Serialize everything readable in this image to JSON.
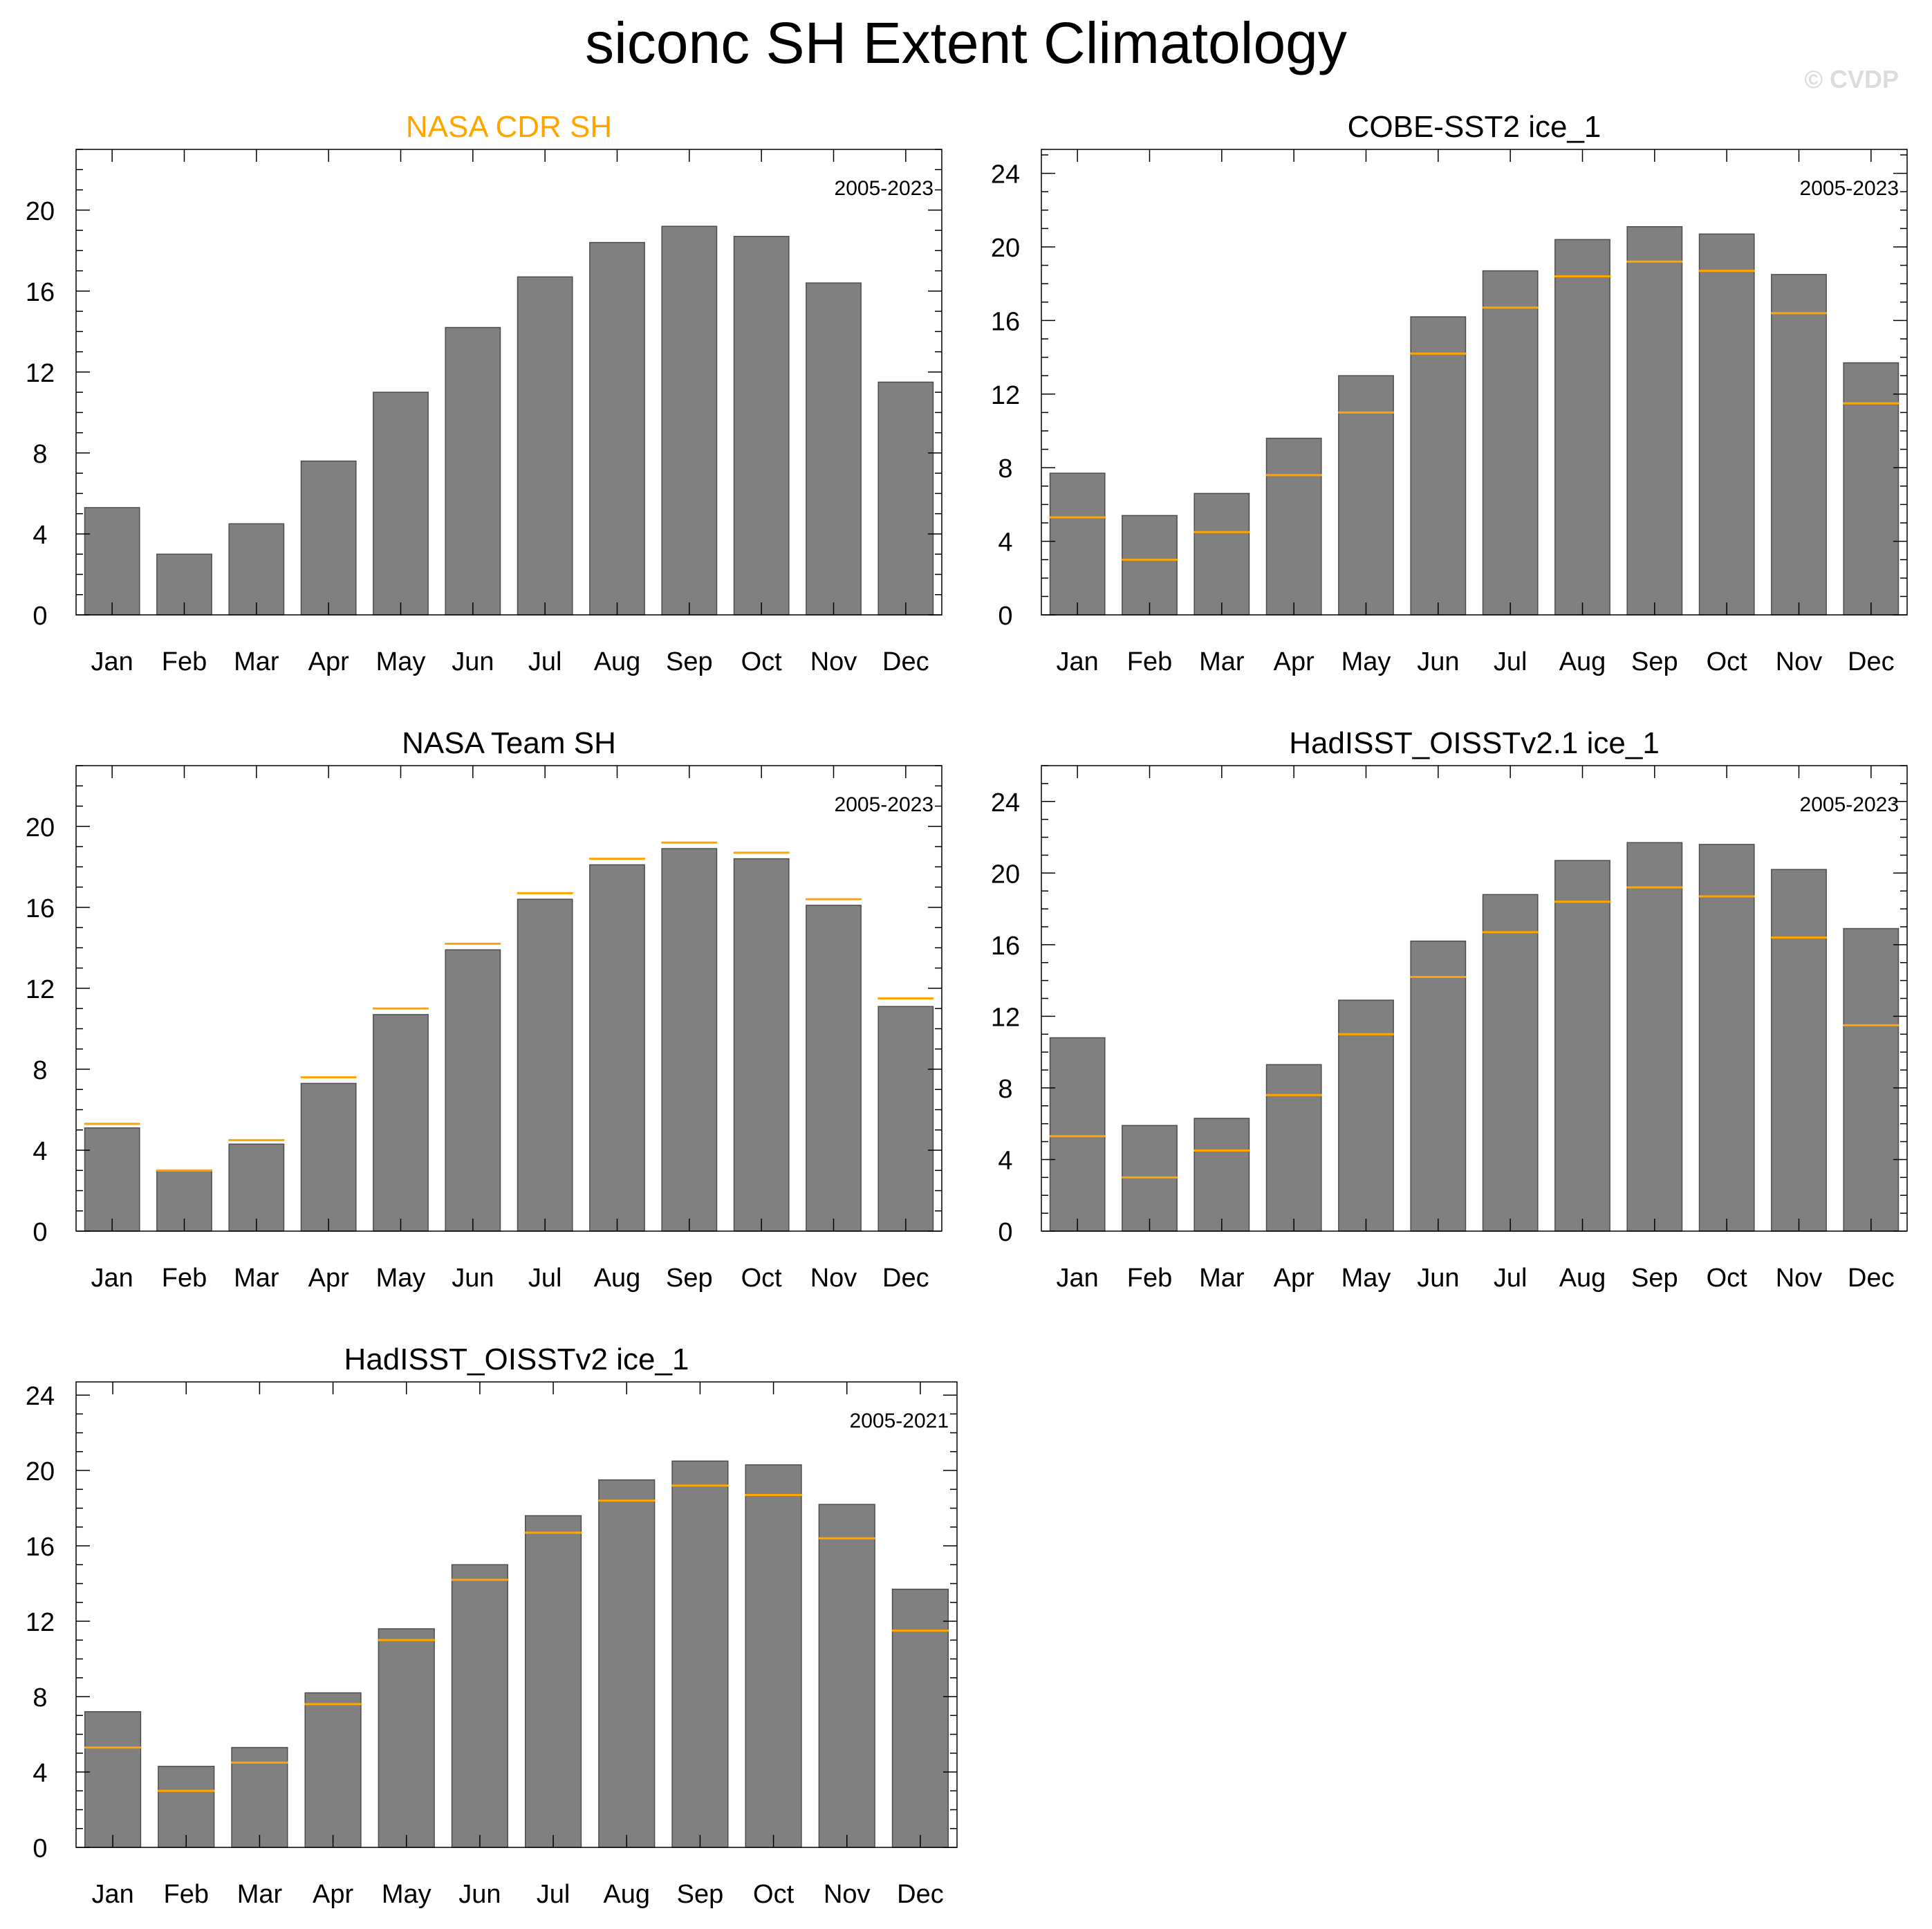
{
  "page": {
    "title": "siconc SH Extent Climatology",
    "watermark": "© CVDP"
  },
  "colors": {
    "bar": "#808080",
    "bar_edge": "#4d4d4d",
    "reference": "#ffa500",
    "highlight_title": "#ffa500",
    "axis": "#000000"
  },
  "chart_data": [
    {
      "type": "bar",
      "title": "NASA CDR SH",
      "title_highlight": true,
      "period": "2005-2023",
      "categories": [
        "Jan",
        "Feb",
        "Mar",
        "Apr",
        "May",
        "Jun",
        "Jul",
        "Aug",
        "Sep",
        "Oct",
        "Nov",
        "Dec"
      ],
      "values": [
        5.3,
        3.0,
        4.5,
        7.6,
        11.0,
        14.2,
        16.7,
        18.4,
        19.2,
        18.7,
        16.4,
        11.5
      ],
      "reference_values": null,
      "yticks": [
        0,
        4,
        8,
        12,
        16,
        20
      ],
      "ylim": [
        0,
        23
      ]
    },
    {
      "type": "bar",
      "title": "COBE-SST2 ice_1",
      "title_highlight": false,
      "period": "2005-2023",
      "categories": [
        "Jan",
        "Feb",
        "Mar",
        "Apr",
        "May",
        "Jun",
        "Jul",
        "Aug",
        "Sep",
        "Oct",
        "Nov",
        "Dec"
      ],
      "values": [
        7.7,
        5.4,
        6.6,
        9.6,
        13.0,
        16.2,
        18.7,
        20.4,
        21.1,
        20.7,
        18.5,
        13.7
      ],
      "reference_values": [
        5.3,
        3.0,
        4.5,
        7.6,
        11.0,
        14.2,
        16.7,
        18.4,
        19.2,
        18.7,
        16.4,
        11.5
      ],
      "yticks": [
        0,
        4,
        8,
        12,
        16,
        20,
        24
      ],
      "ylim": [
        0,
        25.3
      ]
    },
    {
      "type": "bar",
      "title": "NASA Team SH",
      "title_highlight": false,
      "period": "2005-2023",
      "categories": [
        "Jan",
        "Feb",
        "Mar",
        "Apr",
        "May",
        "Jun",
        "Jul",
        "Aug",
        "Sep",
        "Oct",
        "Nov",
        "Dec"
      ],
      "values": [
        5.1,
        3.0,
        4.3,
        7.3,
        10.7,
        13.9,
        16.4,
        18.1,
        18.9,
        18.4,
        16.1,
        11.1
      ],
      "reference_values": [
        5.3,
        3.0,
        4.5,
        7.6,
        11.0,
        14.2,
        16.7,
        18.4,
        19.2,
        18.7,
        16.4,
        11.5
      ],
      "yticks": [
        0,
        4,
        8,
        12,
        16,
        20
      ],
      "ylim": [
        0,
        23
      ]
    },
    {
      "type": "bar",
      "title": "HadISST_OISSTv2.1 ice_1",
      "title_highlight": false,
      "period": "2005-2023",
      "categories": [
        "Jan",
        "Feb",
        "Mar",
        "Apr",
        "May",
        "Jun",
        "Jul",
        "Aug",
        "Sep",
        "Oct",
        "Nov",
        "Dec"
      ],
      "values": [
        10.8,
        5.9,
        6.3,
        9.3,
        12.9,
        16.2,
        18.8,
        20.7,
        21.7,
        21.6,
        20.2,
        16.9
      ],
      "reference_values": [
        5.3,
        3.0,
        4.5,
        7.6,
        11.0,
        14.2,
        16.7,
        18.4,
        19.2,
        18.7,
        16.4,
        11.5
      ],
      "yticks": [
        0,
        4,
        8,
        12,
        16,
        20,
        24
      ],
      "ylim": [
        0,
        26
      ]
    },
    {
      "type": "bar",
      "title": "HadISST_OISSTv2 ice_1",
      "title_highlight": false,
      "period": "2005-2021",
      "categories": [
        "Jan",
        "Feb",
        "Mar",
        "Apr",
        "May",
        "Jun",
        "Jul",
        "Aug",
        "Sep",
        "Oct",
        "Nov",
        "Dec"
      ],
      "values": [
        7.2,
        4.3,
        5.3,
        8.2,
        11.6,
        15.0,
        17.6,
        19.5,
        20.5,
        20.3,
        18.2,
        13.7
      ],
      "reference_values": [
        5.3,
        3.0,
        4.5,
        7.6,
        11.0,
        14.2,
        16.7,
        18.4,
        19.2,
        18.7,
        16.4,
        11.5
      ],
      "yticks": [
        0,
        4,
        8,
        12,
        16,
        20,
        24
      ],
      "ylim": [
        0,
        24.7
      ]
    }
  ]
}
